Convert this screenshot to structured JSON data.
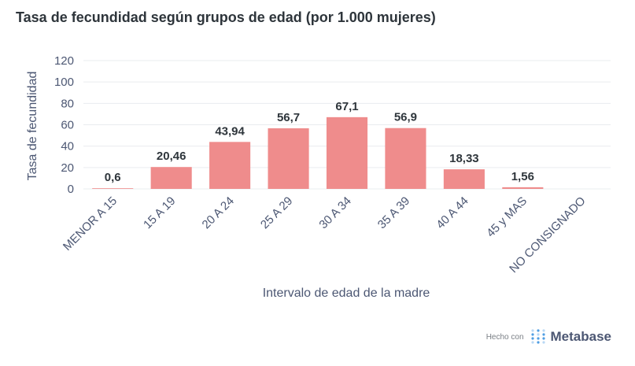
{
  "title": "Tasa de fecundidad según grupos de edad (por 1.000 mujeres)",
  "footer": {
    "made_with": "Hecho con",
    "brand": "Metabase"
  },
  "colors": {
    "bar": "#ef8c8c",
    "grid": "#e9ecef",
    "text": "#2e353b",
    "axis_text": "#4c5773"
  },
  "chart_data": {
    "type": "bar",
    "title": "Tasa de fecundidad según grupos de edad (por 1.000 mujeres)",
    "xlabel": "Intervalo de edad de la madre",
    "ylabel": "Tasa de fecundidad",
    "ylim": [
      0,
      120
    ],
    "yticks": [
      0,
      20,
      40,
      60,
      80,
      100,
      120
    ],
    "categories": [
      "MENOR A 15",
      "15 A 19",
      "20 A 24",
      "25 A 29",
      "30 A 34",
      "35 A 39",
      "40 A 44",
      "45 y MAS",
      "NO CONSIGNADO"
    ],
    "values": [
      0.6,
      20.46,
      43.94,
      56.7,
      67.1,
      56.9,
      18.33,
      1.56,
      null
    ],
    "value_labels": [
      "0,6",
      "20,46",
      "43,94",
      "56,7",
      "67,1",
      "56,9",
      "18,33",
      "1,56",
      ""
    ],
    "grid": true,
    "legend": "none"
  }
}
